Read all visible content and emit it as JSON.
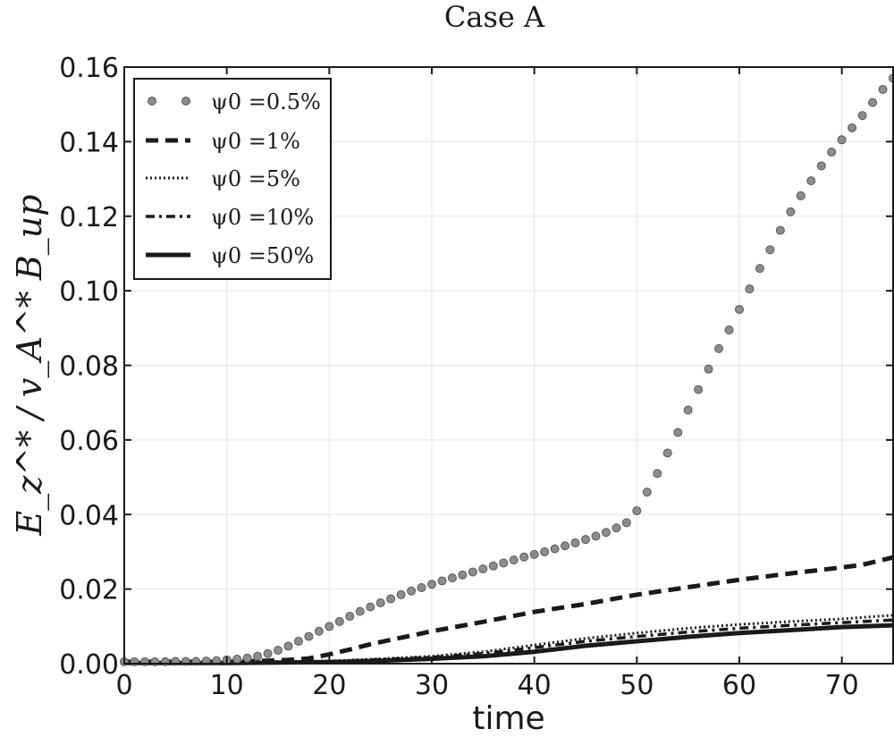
{
  "chart_data": {
    "type": "line",
    "title": "Case A",
    "xlabel": "time",
    "ylabel": "E_z^* / v_A^* B_up",
    "xlim": [
      0,
      75
    ],
    "ylim": [
      0,
      0.16
    ],
    "grid": true,
    "legend_position": "top-left",
    "xticks": [
      0,
      10,
      20,
      30,
      40,
      50,
      60,
      70
    ],
    "xtick_labels": [
      "0",
      "10",
      "20",
      "30",
      "40",
      "50",
      "60",
      "70"
    ],
    "yticks": [
      0,
      0.02,
      0.04,
      0.06,
      0.08,
      0.1,
      0.12,
      0.14,
      0.16
    ],
    "ytick_labels": [
      "0.00",
      "0.02",
      "0.04",
      "0.06",
      "0.08",
      "0.10",
      "0.12",
      "0.14",
      "0.16"
    ],
    "series": [
      {
        "name": "ψ0 =0.5%",
        "legend_label": "ψ0 =0.5%",
        "style": "dots",
        "color": "#888888",
        "x": [
          0,
          1,
          2,
          3,
          4,
          5,
          6,
          7,
          8,
          9,
          10,
          11,
          12,
          13,
          14,
          15,
          16,
          17,
          18,
          19,
          20,
          21,
          22,
          23,
          24,
          25,
          26,
          27,
          28,
          29,
          30,
          31,
          32,
          33,
          34,
          35,
          36,
          37,
          38,
          39,
          40,
          41,
          42,
          43,
          44,
          45,
          46,
          47,
          48,
          49,
          50,
          51,
          52,
          53,
          54,
          55,
          56,
          57,
          58,
          59,
          60,
          61,
          62,
          63,
          64,
          65,
          66,
          67,
          68,
          69,
          70,
          71,
          72,
          73,
          74,
          75
        ],
        "y": [
          0.0005,
          0.0005,
          0.0005,
          0.0005,
          0.0005,
          0.0006,
          0.0006,
          0.0006,
          0.0007,
          0.0008,
          0.001,
          0.0012,
          0.0015,
          0.002,
          0.0027,
          0.0036,
          0.0047,
          0.006,
          0.0073,
          0.0087,
          0.01,
          0.0113,
          0.0127,
          0.014,
          0.0152,
          0.0163,
          0.0174,
          0.0185,
          0.0195,
          0.0204,
          0.0213,
          0.0222,
          0.023,
          0.0238,
          0.0246,
          0.0254,
          0.0262,
          0.027,
          0.0278,
          0.0286,
          0.0293,
          0.03,
          0.0308,
          0.0316,
          0.0324,
          0.0333,
          0.0342,
          0.0352,
          0.0364,
          0.0378,
          0.041,
          0.046,
          0.051,
          0.0565,
          0.062,
          0.068,
          0.0735,
          0.079,
          0.0845,
          0.0895,
          0.095,
          0.1005,
          0.106,
          0.111,
          0.1162,
          0.1212,
          0.1255,
          0.1295,
          0.1335,
          0.1372,
          0.1405,
          0.1437,
          0.147,
          0.1505,
          0.154,
          0.157
        ]
      },
      {
        "name": "ψ0 =1%",
        "legend_label": "ψ0 =1%",
        "style": "dashed",
        "color": "#1a1a1a",
        "x": [
          0,
          10,
          14,
          16,
          18,
          20,
          22,
          24,
          26,
          28,
          30,
          32,
          35,
          38,
          40,
          45,
          50,
          55,
          60,
          65,
          70,
          72,
          75
        ],
        "y": [
          0.0005,
          0.0005,
          0.0008,
          0.001,
          0.0014,
          0.0025,
          0.0038,
          0.0052,
          0.0064,
          0.0075,
          0.0087,
          0.0097,
          0.0112,
          0.0128,
          0.0139,
          0.016,
          0.0185,
          0.0205,
          0.0225,
          0.0242,
          0.0258,
          0.0265,
          0.0285
        ]
      },
      {
        "name": "ψ0 =5%",
        "legend_label": "ψ0 =5%",
        "style": "dotted",
        "color": "#1a1a1a",
        "x": [
          0,
          10,
          20,
          25,
          30,
          35,
          40,
          45,
          50,
          55,
          60,
          65,
          70,
          75
        ],
        "y": [
          0.0003,
          0.0003,
          0.0007,
          0.0013,
          0.002,
          0.0032,
          0.005,
          0.0068,
          0.0082,
          0.0095,
          0.0105,
          0.0113,
          0.012,
          0.013
        ]
      },
      {
        "name": "ψ0 =10%",
        "legend_label": "ψ0 =10%",
        "style": "dashdot",
        "color": "#1a1a1a",
        "x": [
          0,
          10,
          20,
          25,
          30,
          35,
          40,
          45,
          50,
          55,
          60,
          65,
          70,
          75
        ],
        "y": [
          0.0003,
          0.0003,
          0.0006,
          0.0011,
          0.0017,
          0.0027,
          0.0043,
          0.006,
          0.0073,
          0.0085,
          0.0095,
          0.0103,
          0.011,
          0.0117
        ]
      },
      {
        "name": "ψ0 =50%",
        "legend_label": "ψ0 =50%",
        "style": "solid",
        "color": "#1a1a1a",
        "x": [
          0,
          10,
          20,
          25,
          30,
          35,
          40,
          45,
          50,
          55,
          60,
          65,
          70,
          75
        ],
        "y": [
          0.0002,
          0.0002,
          0.0004,
          0.0008,
          0.0013,
          0.002,
          0.0032,
          0.0048,
          0.006,
          0.0072,
          0.0082,
          0.009,
          0.0098,
          0.0103
        ]
      }
    ]
  }
}
